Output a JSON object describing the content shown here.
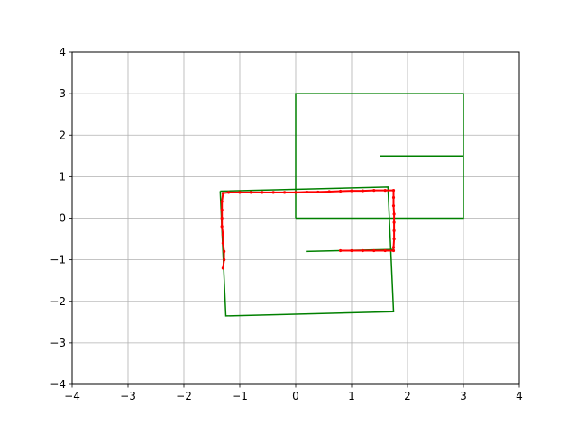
{
  "chart_data": {
    "type": "line",
    "title": "",
    "xlabel": "",
    "ylabel": "",
    "xlim": [
      -4,
      4
    ],
    "ylim": [
      -4,
      4
    ],
    "grid": true,
    "legend": "none",
    "xticks": [
      -4,
      -3,
      -2,
      -1,
      0,
      1,
      2,
      3,
      4
    ],
    "yticks": [
      -4,
      -3,
      -2,
      -1,
      0,
      1,
      2,
      3,
      4
    ],
    "xtick_labels": [
      "−4",
      "−3",
      "−2",
      "−1",
      "0",
      "1",
      "2",
      "3",
      "4"
    ],
    "ytick_labels": [
      "−4",
      "−3",
      "−2",
      "−1",
      "0",
      "1",
      "2",
      "3",
      "4"
    ],
    "colors": {
      "green": "#008000",
      "red": "#ff0000",
      "grid": "#b0b0b0"
    },
    "series": [
      {
        "color": "green",
        "style": "line",
        "points": [
          [
            0,
            0
          ],
          [
            3,
            0
          ],
          [
            3,
            3
          ],
          [
            0,
            3
          ],
          [
            0,
            0
          ]
        ]
      },
      {
        "color": "green",
        "style": "line",
        "points": [
          [
            1.5,
            1.5
          ],
          [
            3,
            1.5
          ]
        ]
      },
      {
        "color": "green",
        "style": "line",
        "points": [
          [
            -1.35,
            0.65
          ],
          [
            1.65,
            0.75
          ],
          [
            1.75,
            -2.25
          ],
          [
            -1.25,
            -2.35
          ],
          [
            -1.35,
            0.65
          ]
        ]
      },
      {
        "color": "green",
        "style": "line",
        "points": [
          [
            0.18,
            -0.8
          ],
          [
            1.75,
            -0.75
          ]
        ]
      },
      {
        "color": "red",
        "style": "markers",
        "points": [
          [
            -1.3,
            -1.2
          ],
          [
            -1.28,
            -1.0
          ],
          [
            -1.28,
            -0.8
          ],
          [
            -1.3,
            -0.6
          ],
          [
            -1.3,
            -0.4
          ],
          [
            -1.32,
            -0.2
          ],
          [
            -1.32,
            0.0
          ],
          [
            -1.32,
            0.2
          ],
          [
            -1.32,
            0.4
          ],
          [
            -1.3,
            0.6
          ],
          [
            -1.2,
            0.62
          ],
          [
            -1.0,
            0.62
          ],
          [
            -0.8,
            0.62
          ],
          [
            -0.6,
            0.62
          ],
          [
            -0.4,
            0.62
          ],
          [
            -0.2,
            0.62
          ],
          [
            0.0,
            0.62
          ],
          [
            0.2,
            0.63
          ],
          [
            0.4,
            0.63
          ],
          [
            0.6,
            0.64
          ],
          [
            0.8,
            0.65
          ],
          [
            1.0,
            0.66
          ],
          [
            1.2,
            0.66
          ],
          [
            1.4,
            0.67
          ],
          [
            1.6,
            0.67
          ],
          [
            1.75,
            0.67
          ],
          [
            1.75,
            0.5
          ],
          [
            1.75,
            0.3
          ],
          [
            1.76,
            0.1
          ],
          [
            1.76,
            -0.1
          ],
          [
            1.76,
            -0.3
          ],
          [
            1.76,
            -0.5
          ],
          [
            1.75,
            -0.7
          ],
          [
            1.75,
            -0.78
          ],
          [
            1.6,
            -0.78
          ],
          [
            1.4,
            -0.78
          ],
          [
            1.2,
            -0.78
          ],
          [
            1.0,
            -0.78
          ],
          [
            0.8,
            -0.78
          ]
        ]
      }
    ]
  }
}
